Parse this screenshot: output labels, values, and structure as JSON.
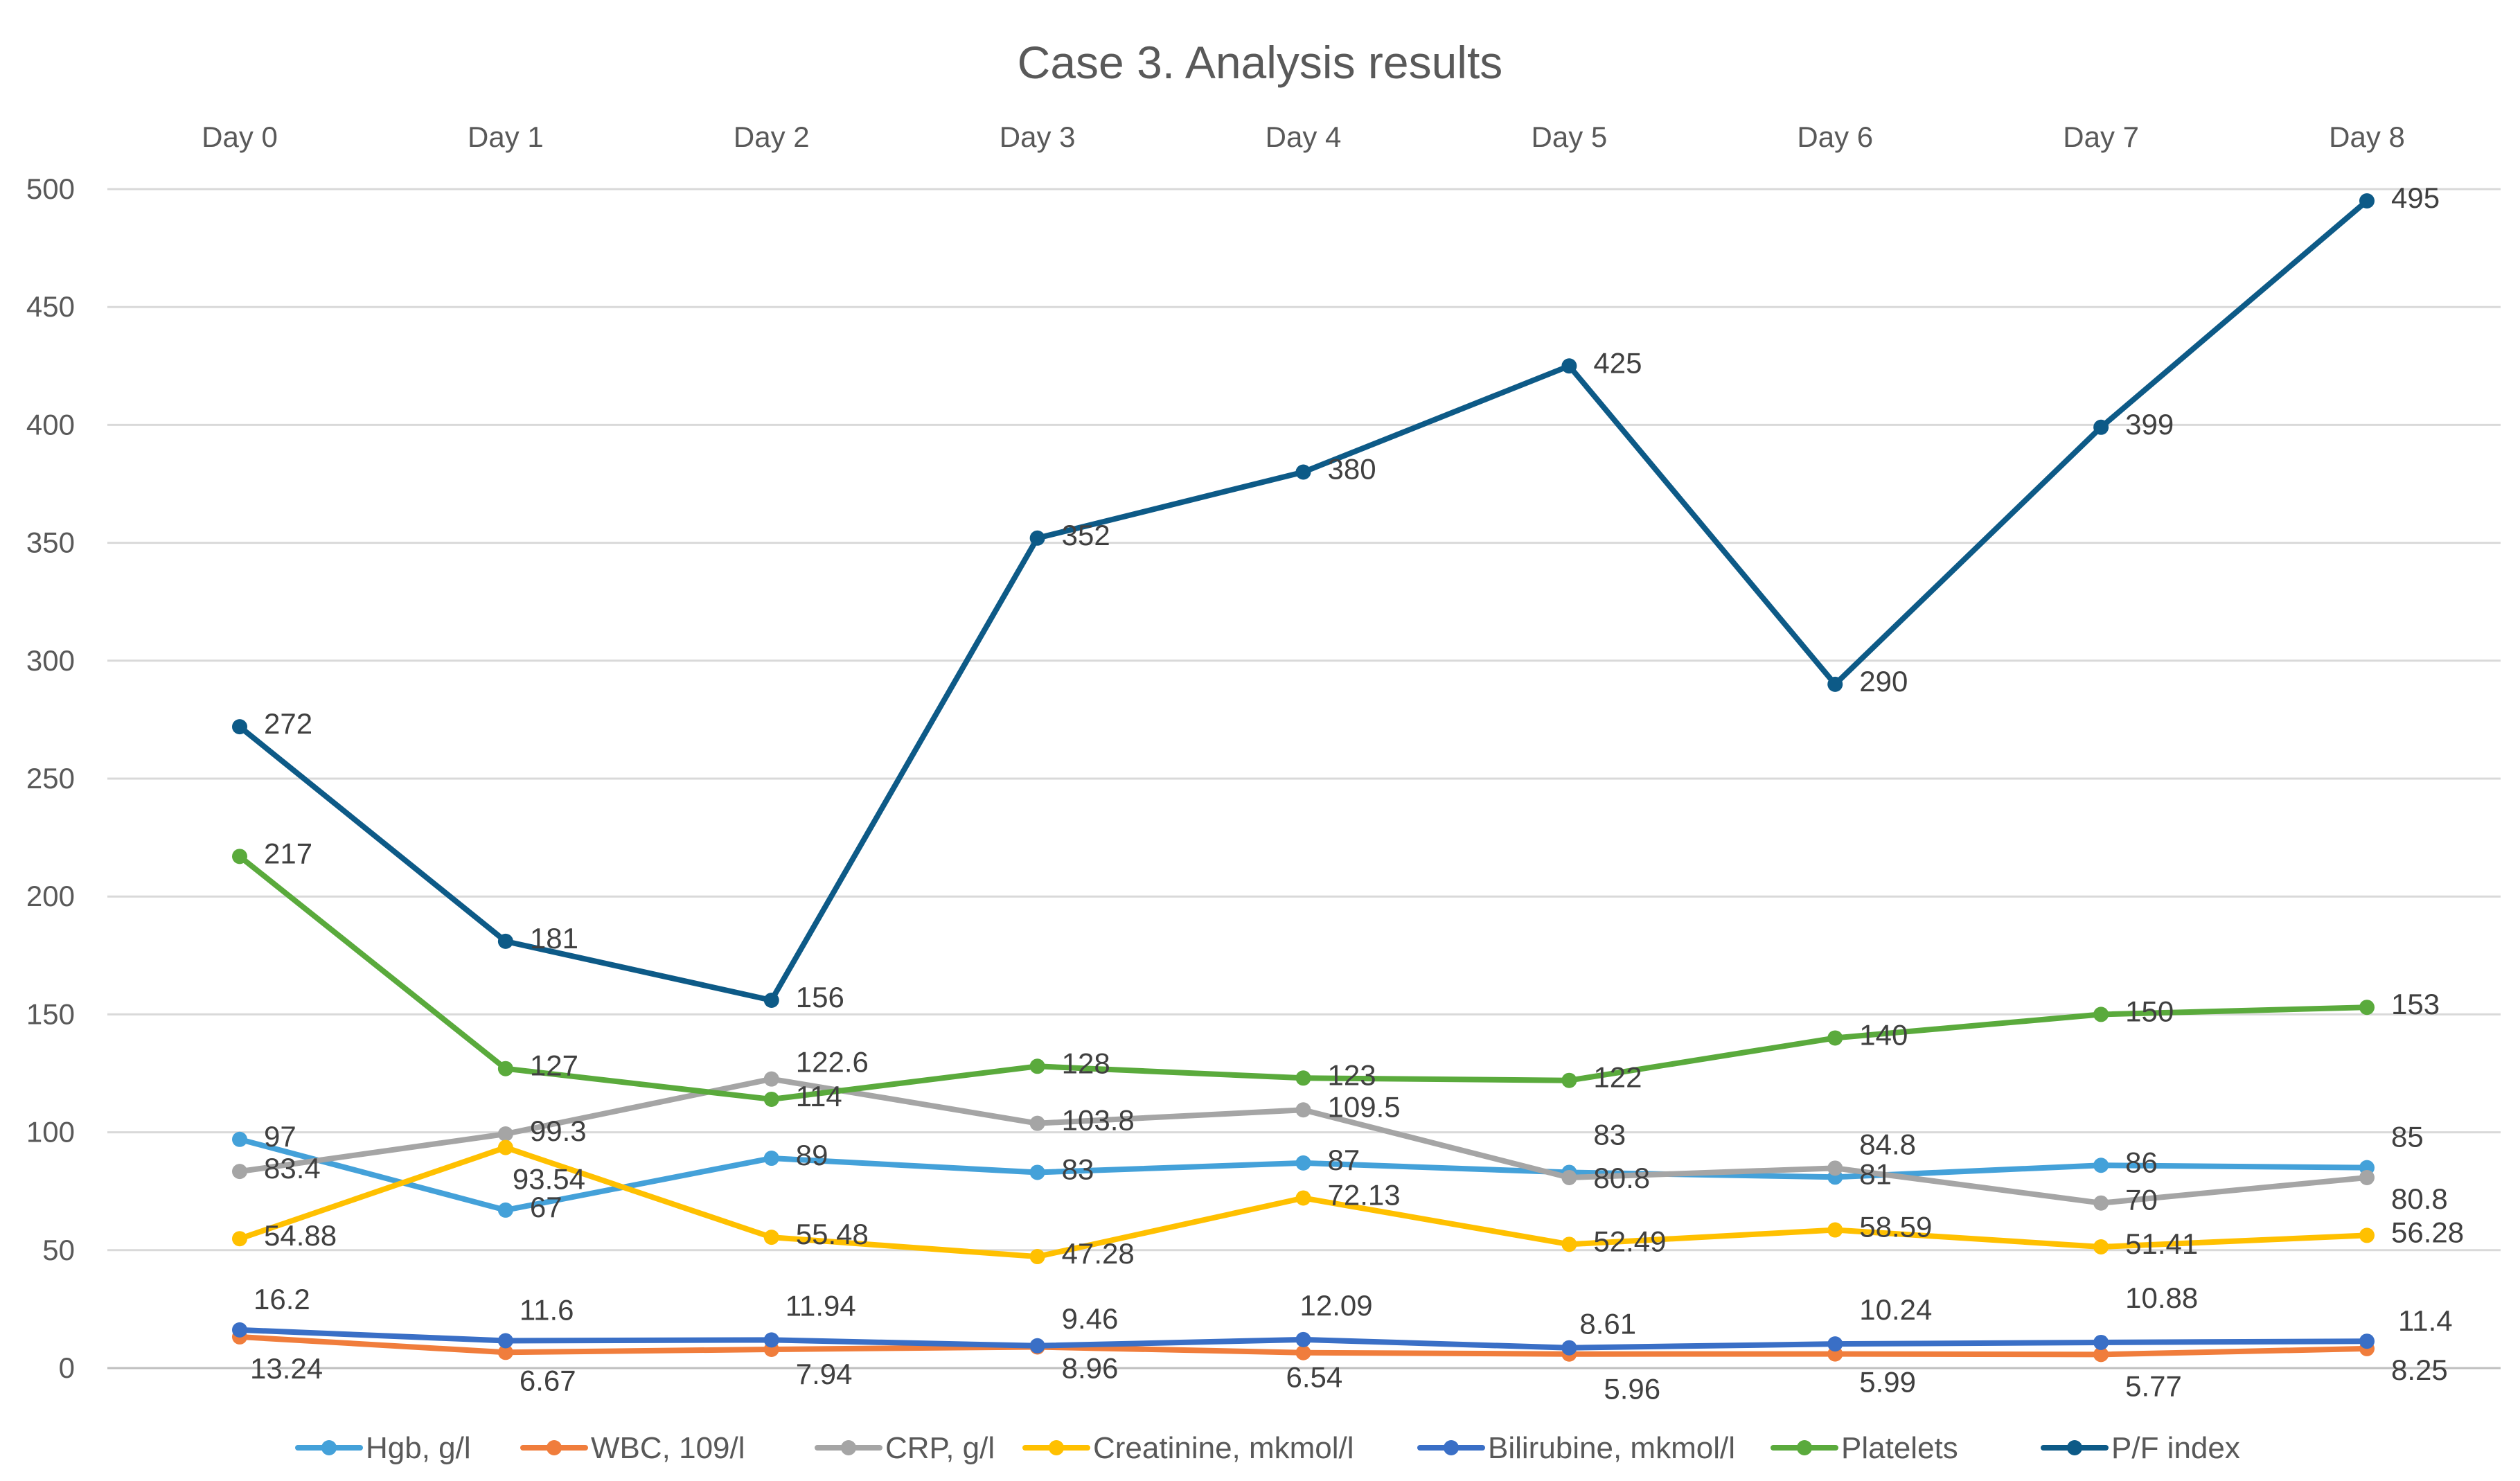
{
  "chart_data": {
    "type": "line",
    "title": "Case 3. Analysis results",
    "xlabel": "",
    "ylabel": "",
    "categories": [
      "Day 0",
      "Day 1",
      "Day 2",
      "Day 3",
      "Day 4",
      "Day 5",
      "Day 6",
      "Day 7",
      "Day 8"
    ],
    "ylim": [
      0,
      500
    ],
    "yticks": [
      0,
      50,
      100,
      150,
      200,
      250,
      300,
      350,
      400,
      450,
      500
    ],
    "grid": true,
    "x_axis_position": "top",
    "legend_position": "bottom",
    "series": [
      {
        "name": "Hgb, g/l",
        "color": "#44a1d9",
        "values": [
          97,
          67,
          89,
          83,
          87,
          83,
          81,
          86,
          85
        ]
      },
      {
        "name": "WBC, 109/l",
        "color": "#f07d3c",
        "values": [
          13.24,
          6.67,
          7.94,
          8.96,
          6.54,
          5.96,
          5.99,
          5.77,
          8.25
        ]
      },
      {
        "name": "CRP, g/l",
        "color": "#a5a5a5",
        "values": [
          83.4,
          99.3,
          122.6,
          103.8,
          109.5,
          80.8,
          84.8,
          70,
          80.8
        ]
      },
      {
        "name": "Creatinine, mkmol/l",
        "color": "#ffc000",
        "values": [
          54.88,
          93.54,
          55.48,
          47.28,
          72.13,
          52.49,
          58.59,
          51.41,
          56.28
        ]
      },
      {
        "name": "Bilirubine, mkmol/l",
        "color": "#3a6fc6",
        "values": [
          16.2,
          11.6,
          11.94,
          9.46,
          12.09,
          8.61,
          10.24,
          10.88,
          11.4
        ]
      },
      {
        "name": "Platelets",
        "color": "#5aaa3c",
        "values": [
          217,
          127,
          114,
          128,
          123,
          122,
          140,
          150,
          153
        ]
      },
      {
        "name": "P/F index",
        "color": "#0d5a87",
        "values": [
          272,
          181,
          156,
          352,
          380,
          425,
          290,
          399,
          495
        ]
      }
    ]
  }
}
